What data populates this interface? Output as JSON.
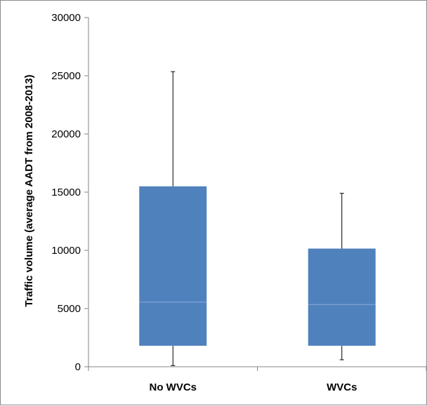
{
  "chart_data": {
    "type": "box",
    "title": "",
    "xlabel": "",
    "ylabel": "Traffic volume (average AADT from 2008-2013)",
    "ylim": [
      0,
      30000
    ],
    "yticks": [
      0,
      5000,
      10000,
      15000,
      20000,
      25000,
      30000
    ],
    "ytick_labels": [
      "0",
      "5000",
      "10000",
      "15000",
      "20000",
      "25000",
      "30000"
    ],
    "grid": false,
    "legend": "none",
    "box_color": "#4f81bd",
    "categories": [
      "No WVCs",
      "WVCs"
    ],
    "boxes": [
      {
        "category": "No WVCs",
        "min": 100,
        "q1": 1800,
        "median": 5550,
        "q3": 15500,
        "max": 25350
      },
      {
        "category": "WVCs",
        "min": 600,
        "q1": 1800,
        "median": 5350,
        "q3": 10150,
        "max": 14900
      }
    ]
  }
}
